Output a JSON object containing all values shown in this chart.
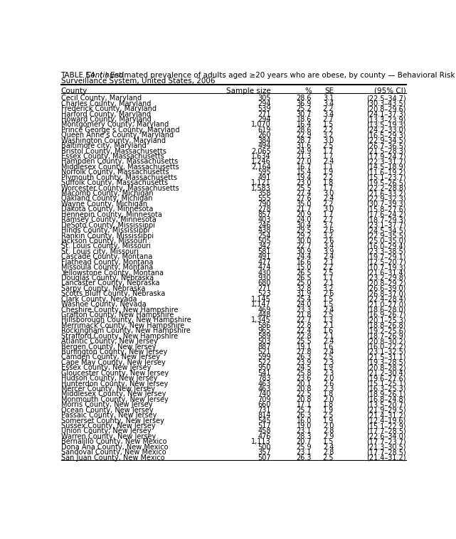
{
  "title_bold_part": "TABLE 54. (",
  "title_italic_part": "Continued",
  "title_rest": ") Estimated prevalence of adults aged ≥20 years who are obese, by county — Behavioral Risk Factor",
  "title_line2": "Surveillance System, United States, 2006",
  "headers": [
    "County",
    "Sample size",
    "%",
    "SE",
    "(95% CI)"
  ],
  "rows": [
    [
      "Cecil County, Maryland",
      "305",
      "28.6",
      "3.1",
      "(22.5–34.7)"
    ],
    [
      "Charles County, Maryland",
      "294",
      "36.9",
      "3.4",
      "(30.3–43.5)"
    ],
    [
      "Frederick County, Maryland",
      "539",
      "25.2",
      "2.2",
      "(20.8–29.6)"
    ],
    [
      "Harford County, Maryland",
      "271",
      "30.7",
      "3.4",
      "(24.1–37.3)"
    ],
    [
      "Howard County, Maryland",
      "294",
      "18.6",
      "2.7",
      "(13.3–23.9)"
    ],
    [
      "Montgomery County, Maryland",
      "1,070",
      "16.4",
      "1.5",
      "(13.5–19.3)"
    ],
    [
      "Prince George’s County, Maryland",
      "619",
      "28.6",
      "2.2",
      "(24.2–33.0)"
    ],
    [
      "Queen Anne’s County, Maryland",
      "260",
      "22.9",
      "3.2",
      "(16.5–29.3)"
    ],
    [
      "Washington County, Maryland",
      "384",
      "28.7",
      "3.0",
      "(22.9–34.5)"
    ],
    [
      "Baltimore city, Maryland",
      "494",
      "31.6",
      "2.5",
      "(26.7–36.5)"
    ],
    [
      "Bristol County, Massachusetts",
      "2,065",
      "24.9",
      "1.7",
      "(21.5–28.3)"
    ],
    [
      "Essex County, Massachusetts",
      "1,634",
      "21.3",
      "1.7",
      "(17.9–24.7)"
    ],
    [
      "Hampden County, Massachusetts",
      "1,246",
      "27.0",
      "2.4",
      "(22.3–31.7)"
    ],
    [
      "Middlesex County, Massachusetts",
      "2,164",
      "16.7",
      "1.1",
      "(14.5–18.9)"
    ],
    [
      "Norfolk County, Massachusetts",
      "595",
      "15.4",
      "1.9",
      "(11.6–19.2)"
    ],
    [
      "Plymouth County, Massachusetts",
      "491",
      "19.4",
      "2.2",
      "(15.1–23.7)"
    ],
    [
      "Suffolk County, Massachusetts",
      "1,121",
      "23.0",
      "1.8",
      "(19.5–26.5)"
    ],
    [
      "Worcester County, Massachusetts",
      "1,583",
      "25.5",
      "1.7",
      "(22.2–28.8)"
    ],
    [
      "Macomb County, Michigan",
      "358",
      "27.4",
      "3.0",
      "(21.6–33.2)"
    ],
    [
      "Oakland County, Michigan",
      "555",
      "27.6",
      "2.4",
      "(22.9–32.3)"
    ],
    [
      "Wayne County, Michigan",
      "790",
      "35.0",
      "2.2",
      "(30.7–39.3)"
    ],
    [
      "Dakota County, Minnesota",
      "278",
      "21.7",
      "3.0",
      "(15.8–27.6)"
    ],
    [
      "Hennepin County, Minnesota",
      "857",
      "20.9",
      "1.7",
      "(17.6–24.2)"
    ],
    [
      "Ramsey County, Minnesota",
      "403",
      "24.0",
      "2.7",
      "(18.7–29.3)"
    ],
    [
      "DeSoto County, Mississippi",
      "246",
      "30.4",
      "3.7",
      "(23.1–37.7)"
    ],
    [
      "Hinds County, Mississippi",
      "438",
      "29.5",
      "2.6",
      "(24.5–34.5)"
    ],
    [
      "Rankin County, Mississippi",
      "254",
      "29.2",
      "3.2",
      "(22.9–35.5)"
    ],
    [
      "Jackson County, Missouri",
      "505",
      "30.0",
      "2.6",
      "(25.0–35.0)"
    ],
    [
      "St. Louis County, Missouri",
      "342",
      "22.7",
      "3.4",
      "(16.0–29.4)"
    ],
    [
      "St. Louis city, Missouri",
      "581",
      "30.9",
      "3.9",
      "(23.3–38.5)"
    ],
    [
      "Cascade County, Montana",
      "491",
      "24.4",
      "2.4",
      "(19.7–29.1)"
    ],
    [
      "Flathead County, Montana",
      "477",
      "16.6",
      "2.1",
      "(12.5–20.7)"
    ],
    [
      "Missoula County, Montana",
      "474",
      "15.0",
      "2.2",
      "(10.7–19.3)"
    ],
    [
      "Yellowstone County, Montana",
      "430",
      "26.5",
      "2.5",
      "(21.6–31.4)"
    ],
    [
      "Douglas County, Nebraska",
      "930",
      "26.5",
      "1.7",
      "(23.2–29.8)"
    ],
    [
      "Lancaster County, Nebraska",
      "680",
      "25.0",
      "2.1",
      "(20.8–29.2)"
    ],
    [
      "Sarpy County, Nebraska",
      "271",
      "32.8",
      "3.2",
      "(26.6–39.0)"
    ],
    [
      "Scotts Bluff County, Nebraska",
      "523",
      "31.9",
      "2.6",
      "(26.8–37.0)"
    ],
    [
      "Clark County, Nevada",
      "1,145",
      "25.4",
      "1.5",
      "(22.4–28.4)"
    ],
    [
      "Washoe County, Nevada",
      "1,147",
      "24.0",
      "1.5",
      "(21.0–27.0)"
    ],
    [
      "Cheshire County, New Hampshire",
      "469",
      "23.3",
      "2.4",
      "(18.6–28.0)"
    ],
    [
      "Grafton County, New Hampshire",
      "448",
      "21.8",
      "2.5",
      "(16.9–26.7)"
    ],
    [
      "Hillsborough County, New Hampshire",
      "1,345",
      "22.7",
      "1.3",
      "(20.1–25.3)"
    ],
    [
      "Merrimack County, New Hampshire",
      "586",
      "22.8",
      "2.1",
      "(18.8–26.8)"
    ],
    [
      "Rockingham County, New Hampshire",
      "965",
      "22.4",
      "1.6",
      "(19.2–25.6)"
    ],
    [
      "Strafford County, New Hampshire",
      "589",
      "22.8",
      "2.1",
      "(18.7–26.9)"
    ],
    [
      "Atlantic County, New Jersey",
      "503",
      "25.5",
      "2.4",
      "(20.8–30.2)"
    ],
    [
      "Bergen County, New Jersey",
      "887",
      "19.1",
      "1.6",
      "(16.0–22.2)"
    ],
    [
      "Burlington County, New Jersey",
      "521",
      "27.8",
      "2.4",
      "(23.1–32.5)"
    ],
    [
      "Camden County, New Jersey",
      "599",
      "26.3",
      "2.5",
      "(21.5–31.1)"
    ],
    [
      "Cape May County, New Jersey",
      "522",
      "23.9",
      "2.3",
      "(19.3–28.5)"
    ],
    [
      "Essex County, New Jersey",
      "950",
      "24.5",
      "1.9",
      "(20.8–28.2)"
    ],
    [
      "Gloucester County, New Jersey",
      "541",
      "25.8",
      "2.3",
      "(21.2–30.4)"
    ],
    [
      "Hudson County, New Jersey",
      "783",
      "23.6",
      "2.0",
      "(19.6–27.6)"
    ],
    [
      "Hunterdon County, New Jersey",
      "463",
      "20.1",
      "2.6",
      "(15.1–25.1)"
    ],
    [
      "Mercer County, New Jersey",
      "463",
      "20.8",
      "2.3",
      "(16.3–25.3)"
    ],
    [
      "Middlesex County, New Jersey",
      "740",
      "22.5",
      "1.8",
      "(18.9–26.1)"
    ],
    [
      "Monmouth County, New Jersey",
      "709",
      "20.8",
      "2.0",
      "(16.8–24.8)"
    ],
    [
      "Morris County, New Jersey",
      "660",
      "17.1",
      "1.8",
      "(13.5–20.7)"
    ],
    [
      "Ocean County, New Jersey",
      "731",
      "25.7",
      "1.9",
      "(21.9–29.5)"
    ],
    [
      "Passaic County, New Jersey",
      "814",
      "26.3",
      "2.5",
      "(21.4–31.2)"
    ],
    [
      "Somerset County, New Jersey",
      "545",
      "16.0",
      "1.9",
      "(12.4–19.6)"
    ],
    [
      "Sussex County, New Jersey",
      "517",
      "19.0",
      "2.0",
      "(15.1–22.9)"
    ],
    [
      "Union County, New Jersey",
      "458",
      "23.1",
      "2.8",
      "(17.7–28.5)"
    ],
    [
      "Warren County, New Jersey",
      "476",
      "28.3",
      "2.9",
      "(22.6–34.0)"
    ],
    [
      "Bernalillo County, New Mexico",
      "1,113",
      "20.7",
      "1.5",
      "(17.7–23.7)"
    ],
    [
      "Dona Ana County, New Mexico",
      "500",
      "25.9",
      "2.4",
      "(21.3–30.5)"
    ],
    [
      "Sandoval County, New Mexico",
      "357",
      "23.1",
      "2.8",
      "(17.7–28.5)"
    ],
    [
      "San Juan County, New Mexico",
      "507",
      "26.3",
      "2.5",
      "(21.4–31.2)"
    ]
  ],
  "bg_color": "#ffffff",
  "title_fontsize": 7.5,
  "header_fontsize": 7.5,
  "body_fontsize": 7.0
}
